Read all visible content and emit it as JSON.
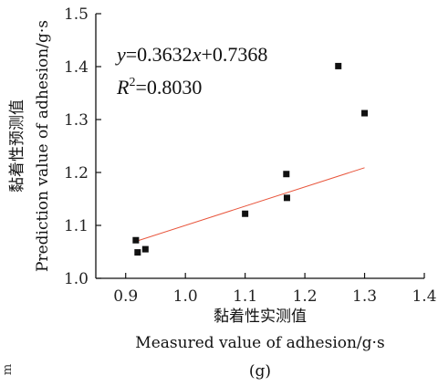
{
  "chart_data": {
    "type": "scatter",
    "x_label_cn": "黏着性实测值",
    "x_label_en": "Measured value of adhesion/g·s",
    "y_label_cn": "黏着性预测值",
    "y_label_en": "Prediction value of adhesion/g·s",
    "xlim": [
      0.85,
      1.4
    ],
    "ylim": [
      1.0,
      1.5
    ],
    "x_ticks": [
      "0.9",
      "1.0",
      "1.1",
      "1.2",
      "1.3",
      "1.4"
    ],
    "y_ticks": [
      "1.0",
      "1.1",
      "1.2",
      "1.3",
      "1.4",
      "1.5"
    ],
    "points": [
      {
        "x": 0.917,
        "y": 1.072
      },
      {
        "x": 0.92,
        "y": 1.049
      },
      {
        "x": 0.933,
        "y": 1.055
      },
      {
        "x": 1.1,
        "y": 1.122
      },
      {
        "x": 1.169,
        "y": 1.197
      },
      {
        "x": 1.17,
        "y": 1.152
      },
      {
        "x": 1.256,
        "y": 1.401
      },
      {
        "x": 1.3,
        "y": 1.312
      }
    ],
    "fit_line": {
      "slope": 0.3632,
      "intercept": 0.7368,
      "x_range": [
        0.92,
        1.3
      ],
      "color": "#e8553c"
    },
    "equation": {
      "y_var": "y",
      "eq_body": "=0.3632",
      "x_var": "x",
      "eq_tail": "+0.7368",
      "r_var": "R",
      "r_sup": "2",
      "r_value": "=0.8030"
    },
    "marker_color": "#111111",
    "grid": false
  },
  "subfigure_label": "(g)",
  "margin_mark": "m"
}
